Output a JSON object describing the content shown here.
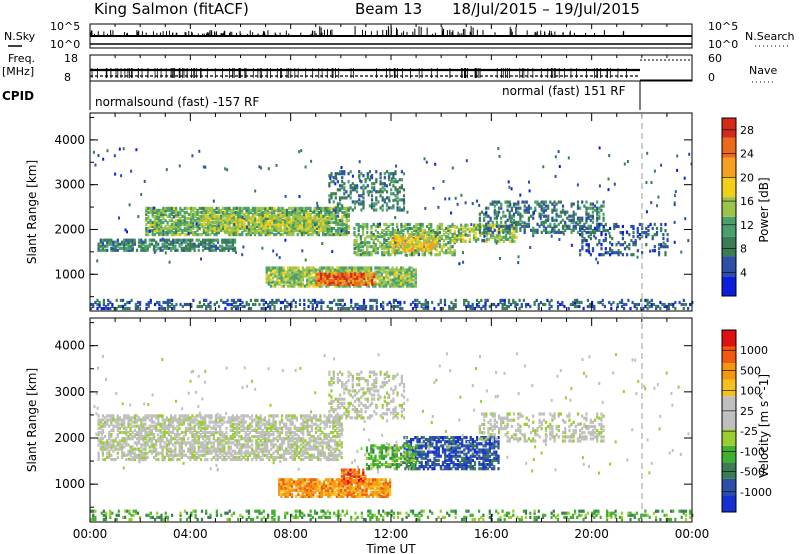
{
  "header": {
    "station": "King Salmon (fitACF)",
    "beam": "Beam 13",
    "dates": "18/Jul/2015 – 19/Jul/2015"
  },
  "strips": {
    "nsky": {
      "label": "N.Sky",
      "hi": "10^5",
      "lo": "10^0"
    },
    "nsearch": {
      "label": "N.Search",
      "hi": "10^5",
      "lo": "10^0"
    },
    "freq": {
      "label_line1": "Freq.",
      "label_line2": "[MHz]",
      "hi": "18",
      "lo": "8"
    },
    "nave": {
      "label": "Nave",
      "hi": "60",
      "lo": "0"
    },
    "cpid": {
      "label": "CPID",
      "mode1": "normalsound (fast) -157 RF",
      "mode2": "normal (fast) 151 RF"
    }
  },
  "colors": {
    "power": [
      "#0a1fdc",
      "#2d4fa8",
      "#3a7d55",
      "#4aa06b",
      "#9cc44a",
      "#f2cf1a",
      "#f5a020",
      "#ea6a1a",
      "#d52a1a"
    ],
    "velocity": [
      "#e01010",
      "#f05a10",
      "#f5960f",
      "#f5c020",
      "#bfbfbf",
      "#bfbfbf",
      "#9acd32",
      "#3fb030",
      "#3a7d55",
      "#2d4fa8",
      "#1530d0"
    ]
  },
  "chart_data": [
    {
      "type": "heatmap",
      "name": "power",
      "x": {
        "label": "",
        "ticks": [
          "00:00",
          "04:00",
          "08:00",
          "12:00",
          "16:00",
          "20:00",
          "00:00"
        ],
        "range_hours": [
          0,
          24
        ]
      },
      "y": {
        "label": "Slant Range [km]",
        "ticks": [
          "1000",
          "2000",
          "3000",
          "4000"
        ],
        "range": [
          180,
          4600
        ]
      },
      "colorbar": {
        "label": "Power [dB]",
        "ticks": [
          "4",
          "8",
          "12",
          "16",
          "20",
          "24",
          "28"
        ],
        "range": [
          0,
          30
        ]
      },
      "regions": [
        {
          "t0": 0.3,
          "t1": 5.8,
          "r0": 1500,
          "r1": 1750,
          "v": 9,
          "d": 0.7
        },
        {
          "t0": 2.2,
          "t1": 10.3,
          "r0": 1850,
          "r1": 2450,
          "v": 13,
          "d": 0.75
        },
        {
          "t0": 4.5,
          "t1": 9.5,
          "r0": 1950,
          "r1": 2300,
          "v": 16,
          "d": 0.6
        },
        {
          "t0": 7.0,
          "t1": 13.0,
          "r0": 700,
          "r1": 1150,
          "v": 14,
          "d": 0.8
        },
        {
          "t0": 9.0,
          "t1": 11.3,
          "r0": 740,
          "r1": 990,
          "v": 25,
          "d": 0.85
        },
        {
          "t0": 10.5,
          "t1": 14.5,
          "r0": 1400,
          "r1": 2100,
          "v": 13,
          "d": 0.55
        },
        {
          "t0": 12.0,
          "t1": 13.8,
          "r0": 1500,
          "r1": 1850,
          "v": 19,
          "d": 0.6
        },
        {
          "t0": 14.5,
          "t1": 17.0,
          "r0": 1700,
          "r1": 2100,
          "v": 15,
          "d": 0.55
        },
        {
          "t0": 15.5,
          "t1": 20.5,
          "r0": 1900,
          "r1": 2600,
          "v": 8,
          "d": 0.4
        },
        {
          "t0": 19.5,
          "t1": 23.0,
          "r0": 1400,
          "r1": 2100,
          "v": 6,
          "d": 0.25
        },
        {
          "t0": 9.5,
          "t1": 12.5,
          "r0": 2400,
          "r1": 3300,
          "v": 8,
          "d": 0.3
        },
        {
          "t0": 0.0,
          "t1": 24.0,
          "r0": 200,
          "r1": 420,
          "v": 6,
          "d": 0.35
        }
      ]
    },
    {
      "type": "heatmap",
      "name": "velocity",
      "x": {
        "label": "Time UT",
        "ticks": [
          "00:00",
          "04:00",
          "08:00",
          "12:00",
          "16:00",
          "20:00",
          "00:00"
        ],
        "range_hours": [
          0,
          24
        ]
      },
      "y": {
        "label": "Slant Range [km]",
        "ticks": [
          "1000",
          "2000",
          "3000",
          "4000"
        ],
        "range": [
          180,
          4600
        ]
      },
      "colorbar": {
        "label": "Velocity [m s^-1]",
        "ticks": [
          "1000",
          "500",
          "100",
          "25",
          "-25",
          "-100",
          "-500",
          "-1000"
        ]
      },
      "regions": [
        {
          "t0": 0.3,
          "t1": 10.0,
          "r0": 1500,
          "r1": 2450,
          "c": 5,
          "d": 0.6
        },
        {
          "t0": 7.5,
          "t1": 12.0,
          "r0": 700,
          "r1": 1100,
          "c": 2,
          "d": 0.8
        },
        {
          "t0": 10.0,
          "t1": 11.0,
          "r0": 1000,
          "r1": 1300,
          "c": 1,
          "d": 0.7
        },
        {
          "t0": 12.5,
          "t1": 16.3,
          "r0": 1300,
          "r1": 2000,
          "c": 9,
          "d": 0.6
        },
        {
          "t0": 11.0,
          "t1": 13.0,
          "r0": 1300,
          "r1": 1800,
          "c": 7,
          "d": 0.5
        },
        {
          "t0": 15.5,
          "t1": 20.5,
          "r0": 1900,
          "r1": 2500,
          "c": 5,
          "d": 0.35
        },
        {
          "t0": 9.5,
          "t1": 12.5,
          "r0": 2400,
          "r1": 3400,
          "c": 5,
          "d": 0.3
        },
        {
          "t0": 0.0,
          "t1": 24.0,
          "r0": 200,
          "r1": 420,
          "c": 7,
          "d": 0.3
        }
      ]
    }
  ]
}
